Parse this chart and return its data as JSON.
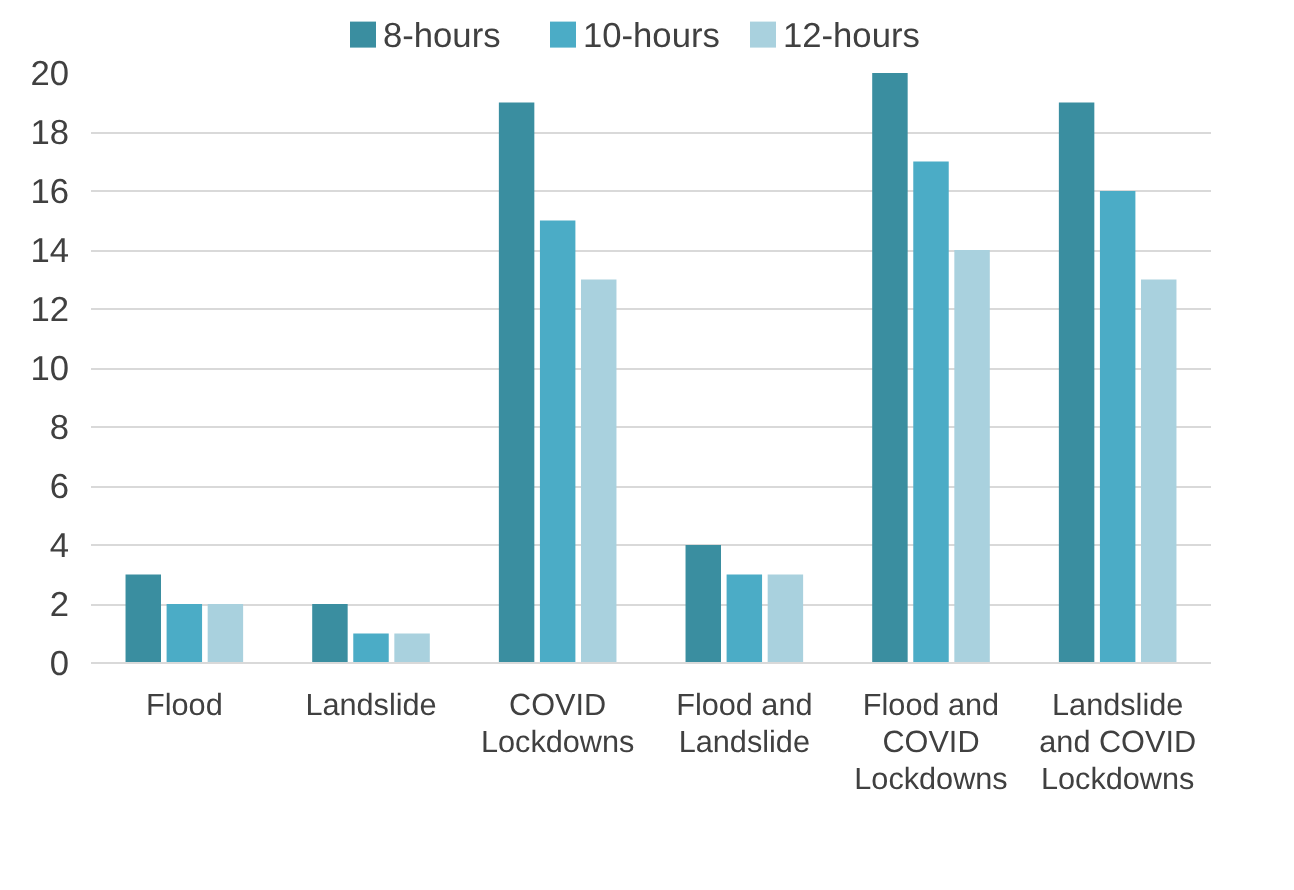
{
  "chart_data": {
    "type": "bar",
    "categories": [
      "Flood",
      "Landslide",
      "COVID Lockdowns",
      "Flood and Landslide",
      "Flood and COVID Lockdowns",
      "Landslide and COVID Lockdowns"
    ],
    "series": [
      {
        "name": "8-hours",
        "color": "#3a8ea0",
        "values": [
          3,
          2,
          19,
          4,
          20,
          19
        ]
      },
      {
        "name": "10-hours",
        "color": "#4bacc6",
        "values": [
          2,
          1,
          15,
          3,
          17,
          16
        ]
      },
      {
        "name": "12-hours",
        "color": "#a9d1de",
        "values": [
          2,
          1,
          13,
          3,
          14,
          13
        ]
      }
    ],
    "ylim": [
      0,
      20
    ],
    "yticks": [
      0,
      2,
      4,
      6,
      8,
      10,
      12,
      14,
      16,
      18,
      20
    ],
    "grid": "y",
    "legend": "top"
  }
}
